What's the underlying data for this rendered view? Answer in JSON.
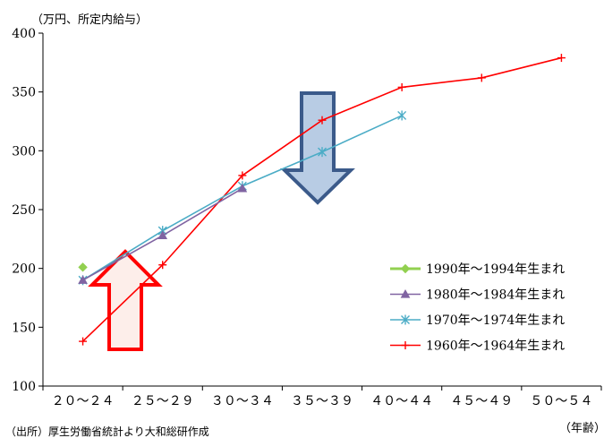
{
  "chart_data": {
    "type": "line",
    "y_unit_label": "（万円、所定内給与）",
    "x_unit_label": "（年齢）",
    "source": "（出所）厚生労働省統計より大和総研作成",
    "categories": [
      "２０～２４",
      "２５～２９",
      "３０～３４",
      "３５～３９",
      "４０～４４",
      "４５～４９",
      "５０～５４"
    ],
    "ylim": [
      100,
      400
    ],
    "yticks": [
      100,
      150,
      200,
      250,
      300,
      350,
      400
    ],
    "grid": false,
    "legend_position": "right-middle",
    "series": [
      {
        "name": "1990年～1994年生まれ",
        "color": "#92d050",
        "marker": "diamond",
        "values": [
          201,
          null,
          null,
          null,
          null,
          null,
          null
        ]
      },
      {
        "name": "1980年～1984年生まれ",
        "color": "#8064a2",
        "marker": "triangle",
        "values": [
          190,
          228,
          268,
          null,
          null,
          null,
          null
        ]
      },
      {
        "name": "1970年～1974年生まれ",
        "color": "#4bacc6",
        "marker": "star",
        "values": [
          190,
          232,
          270,
          299,
          330,
          null,
          null
        ]
      },
      {
        "name": "1960年～1964年生まれ",
        "color": "#ff0000",
        "marker": "plus",
        "values": [
          138,
          203,
          279,
          326,
          354,
          362,
          379
        ]
      }
    ]
  }
}
